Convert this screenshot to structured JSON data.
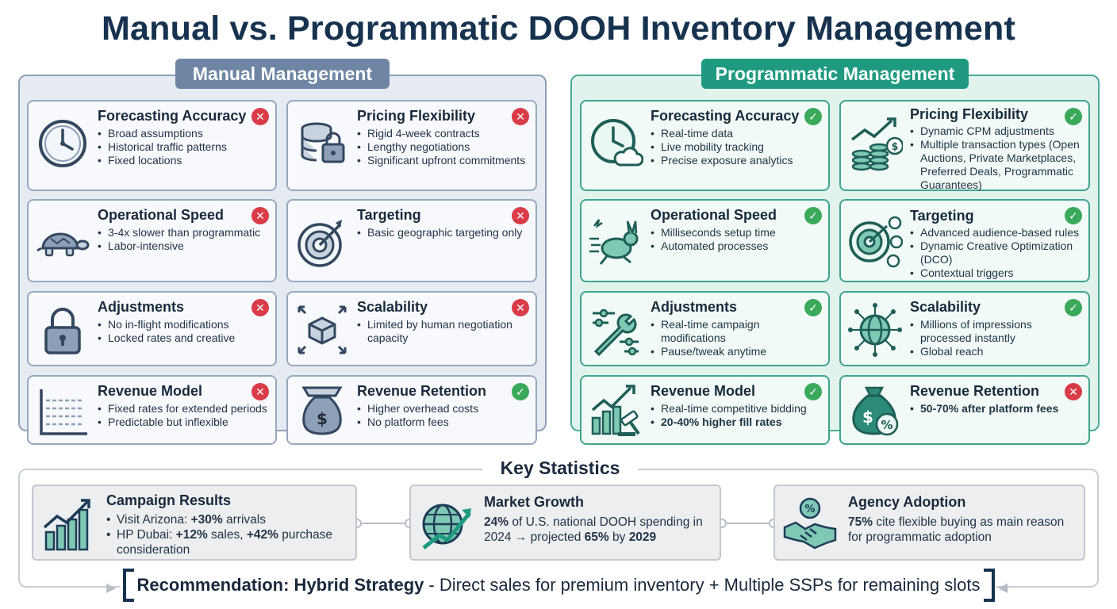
{
  "title": "Manual vs. Programmatic DOOH Inventory Management",
  "manual": {
    "header": "Manual Management",
    "cards": [
      {
        "title": "Forecasting Accuracy",
        "status": "bad",
        "icon": "clock-icon",
        "bullets": [
          "Broad assumptions",
          "Historical traffic patterns",
          "Fixed locations"
        ]
      },
      {
        "title": "Pricing Flexibility",
        "status": "bad",
        "icon": "coin-lock-icon",
        "bullets": [
          "Rigid 4-week contracts",
          "Lengthy negotiations",
          "Significant upfront commitments"
        ]
      },
      {
        "title": "Operational Speed",
        "status": "bad",
        "icon": "turtle-icon",
        "bullets": [
          "3-4x slower than programmatic",
          "Labor-intensive"
        ]
      },
      {
        "title": "Targeting",
        "status": "bad",
        "icon": "target-icon",
        "bullets": [
          "Basic geographic targeting only"
        ]
      },
      {
        "title": "Adjustments",
        "status": "bad",
        "icon": "padlock-icon",
        "bullets": [
          "No in-flight modifications",
          "Locked rates and creative"
        ]
      },
      {
        "title": "Scalability",
        "status": "bad",
        "icon": "box-arrows-icon",
        "bullets": [
          "Limited by human negotiation capacity"
        ]
      },
      {
        "title": "Revenue Model",
        "status": "bad",
        "icon": "flat-chart-icon",
        "bullets": [
          "Fixed rates for extended periods",
          "Predictable but inflexible"
        ]
      },
      {
        "title": "Revenue Retention",
        "status": "good",
        "icon": "money-bag-icon",
        "bullets": [
          "Higher overhead costs",
          "No platform fees"
        ]
      }
    ]
  },
  "programmatic": {
    "header": "Programmatic Management",
    "cards": [
      {
        "title": "Forecasting Accuracy",
        "status": "good",
        "icon": "clock-cloud-icon",
        "bullets": [
          "Real-time data",
          "Live mobility tracking",
          "Precise exposure analytics"
        ]
      },
      {
        "title": "Pricing Flexibility",
        "status": "good",
        "icon": "coins-growth-icon",
        "bullets": [
          "Dynamic CPM adjustments",
          "Multiple transaction types (Open Auctions, Private Marketplaces, Preferred Deals, Programmatic Guarantees)"
        ]
      },
      {
        "title": "Operational Speed",
        "status": "good",
        "icon": "rabbit-icon",
        "bullets": [
          "Milliseconds setup time",
          "Automated processes"
        ]
      },
      {
        "title": "Targeting",
        "status": "good",
        "icon": "audience-target-icon",
        "bullets": [
          "Advanced audience-based rules",
          "Dynamic Creative Optimization (DCO)",
          "Contextual triggers"
        ]
      },
      {
        "title": "Adjustments",
        "status": "good",
        "icon": "wrench-sliders-icon",
        "bullets": [
          "Real-time campaign modifications",
          "Pause/tweak anytime"
        ]
      },
      {
        "title": "Scalability",
        "status": "good",
        "icon": "globe-network-icon",
        "bullets": [
          "Millions of impressions processed instantly",
          "Global reach"
        ]
      },
      {
        "title": "Revenue Model",
        "status": "good",
        "icon": "gavel-chart-icon",
        "bullets": [
          "Real-time competitive bidding",
          "20-40% higher fill rates"
        ]
      },
      {
        "title": "Revenue Retention",
        "status": "bad",
        "icon": "money-bag-percent-icon",
        "bullets": [
          "50-70% after platform fees"
        ]
      }
    ]
  },
  "stats": {
    "title": "Key Statistics",
    "campaign": {
      "title": "Campaign Results",
      "line1_pre": "Visit Arizona: ",
      "line1_b": "+30%",
      "line1_post": " arrivals",
      "line2_pre": "HP Dubai: ",
      "line2_b1": "+12%",
      "line2_mid": " sales, ",
      "line2_b2": "+42%",
      "line2_post": " purchase consideration"
    },
    "market": {
      "title": "Market Growth",
      "b1": "24%",
      "t1": " of U.S. national DOOH spending in 2024 → projected ",
      "b2": "65%",
      "t2": " by ",
      "b3": "2029"
    },
    "agency": {
      "title": "Agency Adoption",
      "b1": "75%",
      "t1": " cite flexible buying as main reason for programmatic adoption"
    }
  },
  "recommendation": {
    "bold": "Recommendation: Hybrid Strategy",
    "text": "- Direct sales for premium inventory + Multiple SSPs for remaining slots"
  },
  "colors": {
    "bad": "#d93b48",
    "good": "#3aa95a",
    "manual_accent": "#6e86a4",
    "prog_accent": "#1f9a80",
    "navy": "#16324f"
  }
}
